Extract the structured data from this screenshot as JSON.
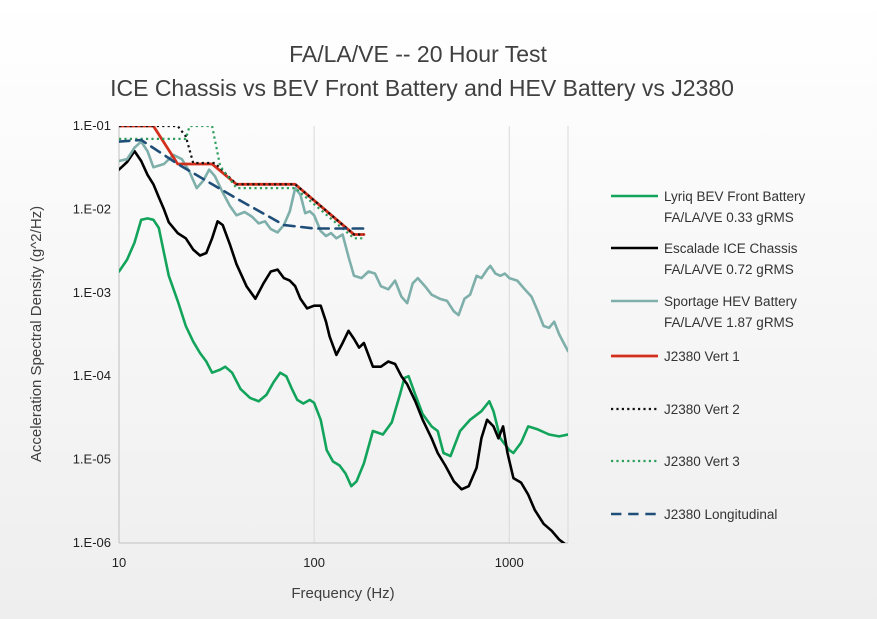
{
  "chart_data": {
    "type": "line",
    "title": [
      "FA/LA/VE -- 20 Hour Test",
      "ICE Chassis vs BEV Front Battery and HEV Battery vs J2380"
    ],
    "xlabel": "Frequency (Hz)",
    "ylabel": "Acceleration Spectral Density (g^2/Hz)",
    "x_scale": "log",
    "y_scale": "log",
    "xlim": [
      10,
      2000
    ],
    "ylim": [
      1e-06,
      0.1
    ],
    "x_ticks": [
      {
        "value": 10,
        "label": "10"
      },
      {
        "value": 100,
        "label": "100"
      },
      {
        "value": 1000,
        "label": "1000"
      }
    ],
    "y_ticks": [
      {
        "value": 0.1,
        "label": "1.E-01"
      },
      {
        "value": 0.01,
        "label": "1.E-02"
      },
      {
        "value": 0.001,
        "label": "1.E-03"
      },
      {
        "value": 0.0001,
        "label": "1.E-04"
      },
      {
        "value": 1e-05,
        "label": "1.E-05"
      },
      {
        "value": 1e-06,
        "label": "1.E-06"
      }
    ],
    "grid": {
      "vertical": true,
      "horizontal": false
    },
    "legend_position": "right",
    "series": [
      {
        "name": "Lyriq BEV Front Battery FA/LA/VE 0.33 gRMS",
        "legend_lines": [
          "Lyriq BEV Front Battery",
          "FA/LA/VE 0.33 gRMS"
        ],
        "color": "#13A45C",
        "dash": "solid",
        "width": 2.6,
        "points": [
          [
            10,
            0.0018
          ],
          [
            11,
            0.0025
          ],
          [
            12,
            0.004
          ],
          [
            13,
            0.0075
          ],
          [
            14,
            0.0078
          ],
          [
            15,
            0.0075
          ],
          [
            16,
            0.006
          ],
          [
            17,
            0.003
          ],
          [
            18,
            0.0016
          ],
          [
            20,
            0.0008
          ],
          [
            22,
            0.0004
          ],
          [
            24,
            0.00026
          ],
          [
            26,
            0.00019
          ],
          [
            28,
            0.00015
          ],
          [
            30,
            0.00011
          ],
          [
            33,
            0.00012
          ],
          [
            35,
            0.00013
          ],
          [
            38,
            0.00011
          ],
          [
            42,
            7e-05
          ],
          [
            47,
            5.5e-05
          ],
          [
            52,
            5e-05
          ],
          [
            57,
            6e-05
          ],
          [
            62,
            8.5e-05
          ],
          [
            67,
            0.00011
          ],
          [
            72,
            0.0001
          ],
          [
            77,
            7e-05
          ],
          [
            82,
            5.2e-05
          ],
          [
            88,
            4.7e-05
          ],
          [
            95,
            5.2e-05
          ],
          [
            100,
            4.8e-05
          ],
          [
            108,
            3e-05
          ],
          [
            116,
            1.3e-05
          ],
          [
            125,
            9.5e-06
          ],
          [
            135,
            8.5e-06
          ],
          [
            145,
            6.8e-06
          ],
          [
            155,
            4.8e-06
          ],
          [
            165,
            5.5e-06
          ],
          [
            180,
            9e-06
          ],
          [
            200,
            2.2e-05
          ],
          [
            225,
            2e-05
          ],
          [
            250,
            2.8e-05
          ],
          [
            275,
            6e-05
          ],
          [
            290,
            9.5e-05
          ],
          [
            305,
            0.0001
          ],
          [
            330,
            6e-05
          ],
          [
            360,
            3.5e-05
          ],
          [
            400,
            2.5e-05
          ],
          [
            430,
            2.2e-05
          ],
          [
            460,
            1.2e-05
          ],
          [
            500,
            1.1e-05
          ],
          [
            560,
            2.2e-05
          ],
          [
            630,
            3e-05
          ],
          [
            720,
            3.8e-05
          ],
          [
            790,
            5e-05
          ],
          [
            830,
            3.8e-05
          ],
          [
            900,
            1.8e-05
          ],
          [
            1000,
            1.3e-05
          ],
          [
            1050,
            1.2e-05
          ],
          [
            1150,
            1.6e-05
          ],
          [
            1250,
            2.5e-05
          ],
          [
            1400,
            2.3e-05
          ],
          [
            1600,
            2e-05
          ],
          [
            1800,
            1.9e-05
          ],
          [
            2000,
            2e-05
          ]
        ]
      },
      {
        "name": "Escalade ICE Chassis FA/LA/VE 0.72 gRMS",
        "legend_lines": [
          "Escalade ICE Chassis",
          "FA/LA/VE 0.72 gRMS"
        ],
        "color": "#000000",
        "dash": "solid",
        "width": 2.6,
        "points": [
          [
            10,
            0.03
          ],
          [
            11,
            0.037
          ],
          [
            12,
            0.05
          ],
          [
            13,
            0.038
          ],
          [
            14,
            0.026
          ],
          [
            15,
            0.02
          ],
          [
            16,
            0.014
          ],
          [
            17,
            0.01
          ],
          [
            18,
            0.007
          ],
          [
            20,
            0.0052
          ],
          [
            22,
            0.0045
          ],
          [
            24,
            0.0033
          ],
          [
            26,
            0.0028
          ],
          [
            28,
            0.003
          ],
          [
            30,
            0.0045
          ],
          [
            32,
            0.0072
          ],
          [
            34,
            0.0065
          ],
          [
            37,
            0.0038
          ],
          [
            40,
            0.0022
          ],
          [
            45,
            0.0012
          ],
          [
            50,
            0.00085
          ],
          [
            55,
            0.0013
          ],
          [
            60,
            0.0018
          ],
          [
            65,
            0.0019
          ],
          [
            70,
            0.0015
          ],
          [
            75,
            0.0014
          ],
          [
            80,
            0.0012
          ],
          [
            85,
            0.00085
          ],
          [
            92,
            0.00065
          ],
          [
            100,
            0.0007
          ],
          [
            108,
            0.0007
          ],
          [
            115,
            0.00045
          ],
          [
            120,
            0.0003
          ],
          [
            130,
            0.00018
          ],
          [
            140,
            0.00025
          ],
          [
            150,
            0.00035
          ],
          [
            160,
            0.00028
          ],
          [
            170,
            0.00022
          ],
          [
            180,
            0.00025
          ],
          [
            200,
            0.00013
          ],
          [
            220,
            0.00013
          ],
          [
            240,
            0.00015
          ],
          [
            260,
            0.00014
          ],
          [
            280,
            0.0001
          ],
          [
            300,
            8e-05
          ],
          [
            330,
            5e-05
          ],
          [
            360,
            3e-05
          ],
          [
            400,
            1.8e-05
          ],
          [
            430,
            1.2e-05
          ],
          [
            470,
            8.5e-06
          ],
          [
            520,
            5.5e-06
          ],
          [
            570,
            4.4e-06
          ],
          [
            620,
            4.8e-06
          ],
          [
            680,
            8e-06
          ],
          [
            720,
            1.8e-05
          ],
          [
            770,
            3e-05
          ],
          [
            830,
            2.5e-05
          ],
          [
            880,
            1.8e-05
          ],
          [
            930,
            2.5e-05
          ],
          [
            980,
            1.2e-05
          ],
          [
            1050,
            6e-06
          ],
          [
            1150,
            5.3e-06
          ],
          [
            1250,
            3.8e-06
          ],
          [
            1350,
            2.5e-06
          ],
          [
            1500,
            1.7e-06
          ],
          [
            1650,
            1.4e-06
          ],
          [
            1800,
            1.1e-06
          ],
          [
            1900,
            1e-06
          ],
          [
            2000,
            9e-07
          ]
        ]
      },
      {
        "name": "Sportage HEV Battery FA/LA/VE 1.87 gRMS",
        "legend_lines": [
          "Sportage HEV Battery",
          "FA/LA/VE 1.87 gRMS"
        ],
        "color": "#7FAFAA",
        "dash": "solid",
        "width": 2.6,
        "points": [
          [
            10,
            0.038
          ],
          [
            11,
            0.04
          ],
          [
            12,
            0.055
          ],
          [
            13,
            0.065
          ],
          [
            14,
            0.05
          ],
          [
            15,
            0.032
          ],
          [
            17,
            0.035
          ],
          [
            19,
            0.045
          ],
          [
            21,
            0.04
          ],
          [
            23,
            0.028
          ],
          [
            25,
            0.018
          ],
          [
            27,
            0.022
          ],
          [
            29,
            0.03
          ],
          [
            31,
            0.025
          ],
          [
            34,
            0.016
          ],
          [
            37,
            0.011
          ],
          [
            40,
            0.0085
          ],
          [
            44,
            0.0093
          ],
          [
            48,
            0.0082
          ],
          [
            52,
            0.0068
          ],
          [
            56,
            0.0072
          ],
          [
            60,
            0.0058
          ],
          [
            65,
            0.0053
          ],
          [
            70,
            0.0065
          ],
          [
            75,
            0.0095
          ],
          [
            80,
            0.018
          ],
          [
            85,
            0.015
          ],
          [
            90,
            0.009
          ],
          [
            95,
            0.0095
          ],
          [
            100,
            0.0085
          ],
          [
            108,
            0.0055
          ],
          [
            115,
            0.0048
          ],
          [
            122,
            0.0052
          ],
          [
            130,
            0.0045
          ],
          [
            140,
            0.005
          ],
          [
            150,
            0.0027
          ],
          [
            160,
            0.0016
          ],
          [
            175,
            0.0015
          ],
          [
            190,
            0.0018
          ],
          [
            205,
            0.0017
          ],
          [
            220,
            0.0012
          ],
          [
            240,
            0.0011
          ],
          [
            260,
            0.0014
          ],
          [
            280,
            0.0009
          ],
          [
            300,
            0.00075
          ],
          [
            320,
            0.0013
          ],
          [
            340,
            0.0015
          ],
          [
            370,
            0.0012
          ],
          [
            400,
            0.00095
          ],
          [
            440,
            0.00085
          ],
          [
            480,
            0.0008
          ],
          [
            520,
            0.0006
          ],
          [
            550,
            0.00054
          ],
          [
            590,
            0.00085
          ],
          [
            630,
            0.00095
          ],
          [
            680,
            0.0016
          ],
          [
            720,
            0.0015
          ],
          [
            770,
            0.0019
          ],
          [
            800,
            0.0021
          ],
          [
            850,
            0.0017
          ],
          [
            900,
            0.0016
          ],
          [
            950,
            0.0017
          ],
          [
            1000,
            0.0015
          ],
          [
            1100,
            0.0014
          ],
          [
            1200,
            0.0011
          ],
          [
            1300,
            0.0009
          ],
          [
            1400,
            0.0006
          ],
          [
            1500,
            0.0004
          ],
          [
            1600,
            0.00038
          ],
          [
            1700,
            0.00045
          ],
          [
            1800,
            0.00032
          ],
          [
            1900,
            0.00025
          ],
          [
            2000,
            0.0002
          ]
        ]
      },
      {
        "name": "J2380 Vert 1",
        "legend_lines": [
          "J2380 Vert 1"
        ],
        "color": "#D2301C",
        "dash": "solid",
        "width": 2.8,
        "points": [
          [
            10,
            0.1
          ],
          [
            15,
            0.1
          ],
          [
            20,
            0.035
          ],
          [
            30,
            0.035
          ],
          [
            40,
            0.02
          ],
          [
            80,
            0.02
          ],
          [
            160,
            0.005
          ],
          [
            180,
            0.005
          ]
        ]
      },
      {
        "name": "J2380 Vert 2",
        "legend_lines": [
          "J2380 Vert 2"
        ],
        "color": "#111111",
        "dash": "dot",
        "width": 2.2,
        "points": [
          [
            10,
            0.1
          ],
          [
            20,
            0.1
          ],
          [
            22,
            0.075
          ],
          [
            24,
            0.036
          ],
          [
            31,
            0.036
          ],
          [
            40,
            0.02
          ],
          [
            80,
            0.02
          ],
          [
            160,
            0.005
          ],
          [
            180,
            0.005
          ]
        ]
      },
      {
        "name": "J2380 Vert 3",
        "legend_lines": [
          "J2380 Vert 3"
        ],
        "color": "#2E9E5C",
        "dash": "dot",
        "width": 2.2,
        "points": [
          [
            10,
            0.07
          ],
          [
            22,
            0.07
          ],
          [
            23,
            0.1
          ],
          [
            30,
            0.1
          ],
          [
            33,
            0.033
          ],
          [
            40,
            0.018
          ],
          [
            80,
            0.018
          ],
          [
            160,
            0.0045
          ],
          [
            180,
            0.0045
          ]
        ]
      },
      {
        "name": "J2380 Longitudinal",
        "legend_lines": [
          "J2380 Longitudinal"
        ],
        "color": "#1F4E79",
        "dash": "dash",
        "width": 2.6,
        "points": [
          [
            10,
            0.065
          ],
          [
            13,
            0.068
          ],
          [
            20,
            0.035
          ],
          [
            40,
            0.0135
          ],
          [
            70,
            0.0065
          ],
          [
            100,
            0.0059
          ],
          [
            180,
            0.0059
          ]
        ]
      }
    ]
  }
}
